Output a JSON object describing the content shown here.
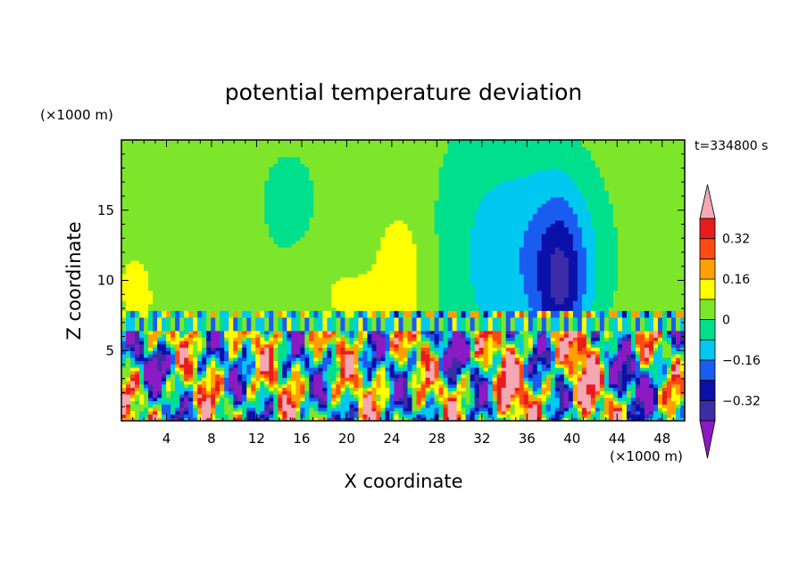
{
  "chart_data": {
    "type": "heatmap",
    "title": "potential temperature deviation",
    "xlabel": "X coordinate",
    "ylabel": "Z coordinate",
    "x_unit": "(×1000 m)",
    "y_unit": "(×1000 m)",
    "time_label": "t=334800 s",
    "xlim": [
      0,
      50
    ],
    "ylim": [
      0,
      20
    ],
    "x_ticks": [
      4,
      8,
      12,
      16,
      20,
      24,
      28,
      32,
      36,
      40,
      44,
      48
    ],
    "x_tick_labels": [
      "4",
      "8",
      "12",
      "16",
      "20",
      "24",
      "28",
      "32",
      "36",
      "40",
      "44",
      "48"
    ],
    "y_ticks": [
      5,
      10,
      15
    ],
    "y_tick_labels": [
      "5",
      "10",
      "15"
    ],
    "colorbar": {
      "levels": [
        -0.4,
        -0.32,
        -0.24,
        -0.16,
        -0.08,
        0,
        0.08,
        0.16,
        0.24,
        0.32,
        0.4
      ],
      "labels": [
        "0.32",
        "0.16",
        "0",
        "−0.16",
        "−0.32"
      ],
      "label_values": [
        0.32,
        0.16,
        0,
        -0.16,
        -0.32
      ],
      "colors": [
        "#8c1ac4",
        "#3c2ca8",
        "#0a10a8",
        "#1a5cf0",
        "#00c8f0",
        "#00e08c",
        "#7ee62a",
        "#ffff00",
        "#ffa000",
        "#ff4a14",
        "#e81c1c",
        "#f4a8b4"
      ],
      "extend": "both"
    },
    "notes": "Upper troposphere (z > 7.5) smooth: mostly 0..0.08 with +0.08..0.16 plume near x=24-26 and a -0.4 column near x=38-40. Below z ~ 7.5 small-scale turbulent field spanning the full range."
  }
}
